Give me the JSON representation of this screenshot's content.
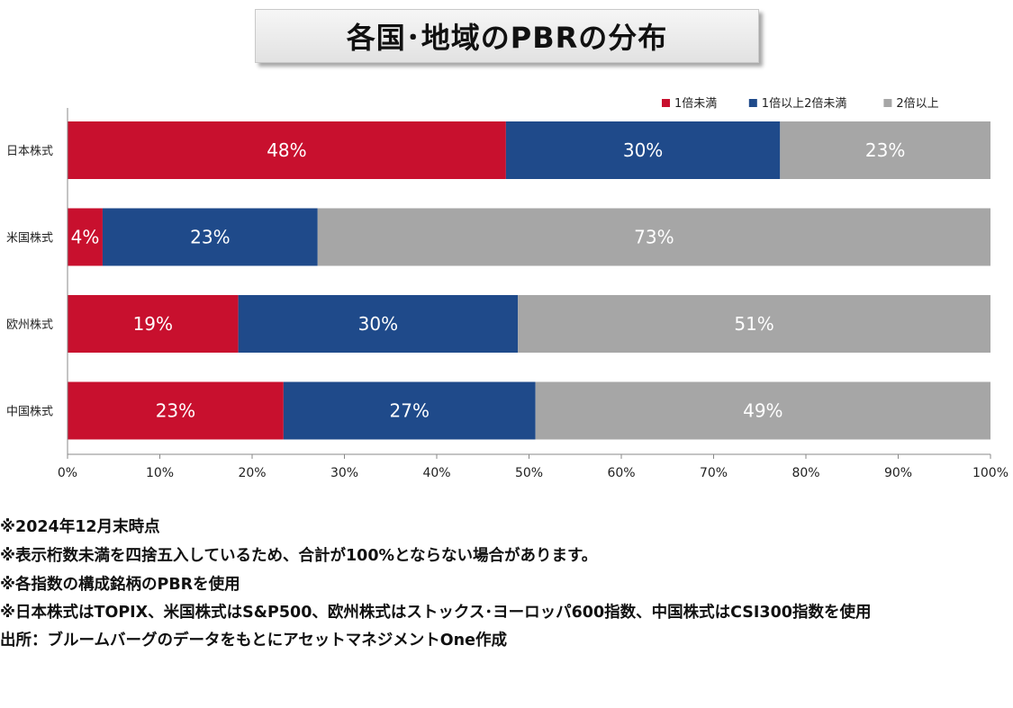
{
  "title": "各国･地域のPBRの分布",
  "chart_data": {
    "type": "bar",
    "orientation": "horizontal",
    "stacked": true,
    "categories": [
      "日本株式",
      "米国株式",
      "欧州株式",
      "中国株式"
    ],
    "series": [
      {
        "name": "1倍未満",
        "color": "#c8102e",
        "values": [
          47.5,
          3.8,
          18.5,
          23.4
        ],
        "labels": [
          "48%",
          "4%",
          "19%",
          "23%"
        ]
      },
      {
        "name": "1倍以上2倍未満",
        "color": "#1f4a8a",
        "values": [
          29.7,
          23.3,
          30.3,
          27.3
        ],
        "labels": [
          "30%",
          "23%",
          "30%",
          "27%"
        ]
      },
      {
        "name": "2倍以上",
        "color": "#a6a6a6",
        "values": [
          22.8,
          72.9,
          51.2,
          49.3
        ],
        "labels": [
          "23%",
          "73%",
          "51%",
          "49%"
        ]
      }
    ],
    "xlim": [
      0,
      100
    ],
    "xticks": [
      "0%",
      "10%",
      "20%",
      "30%",
      "40%",
      "50%",
      "60%",
      "70%",
      "80%",
      "90%",
      "100%"
    ],
    "legend_position": "top-right",
    "grid": false
  },
  "notes": [
    "※2024年12月末時点",
    "※表示桁数未満を四捨五入しているため、合計が100%とならない場合があります。",
    "※各指数の構成銘柄のPBRを使用",
    "※日本株式はTOPIX、米国株式はS&P500、欧州株式はストックス･ヨーロッパ600指数、中国株式はCSI300指数を使用",
    "出所：ブルームバーグのデータをもとにアセットマネジメントOne作成"
  ]
}
